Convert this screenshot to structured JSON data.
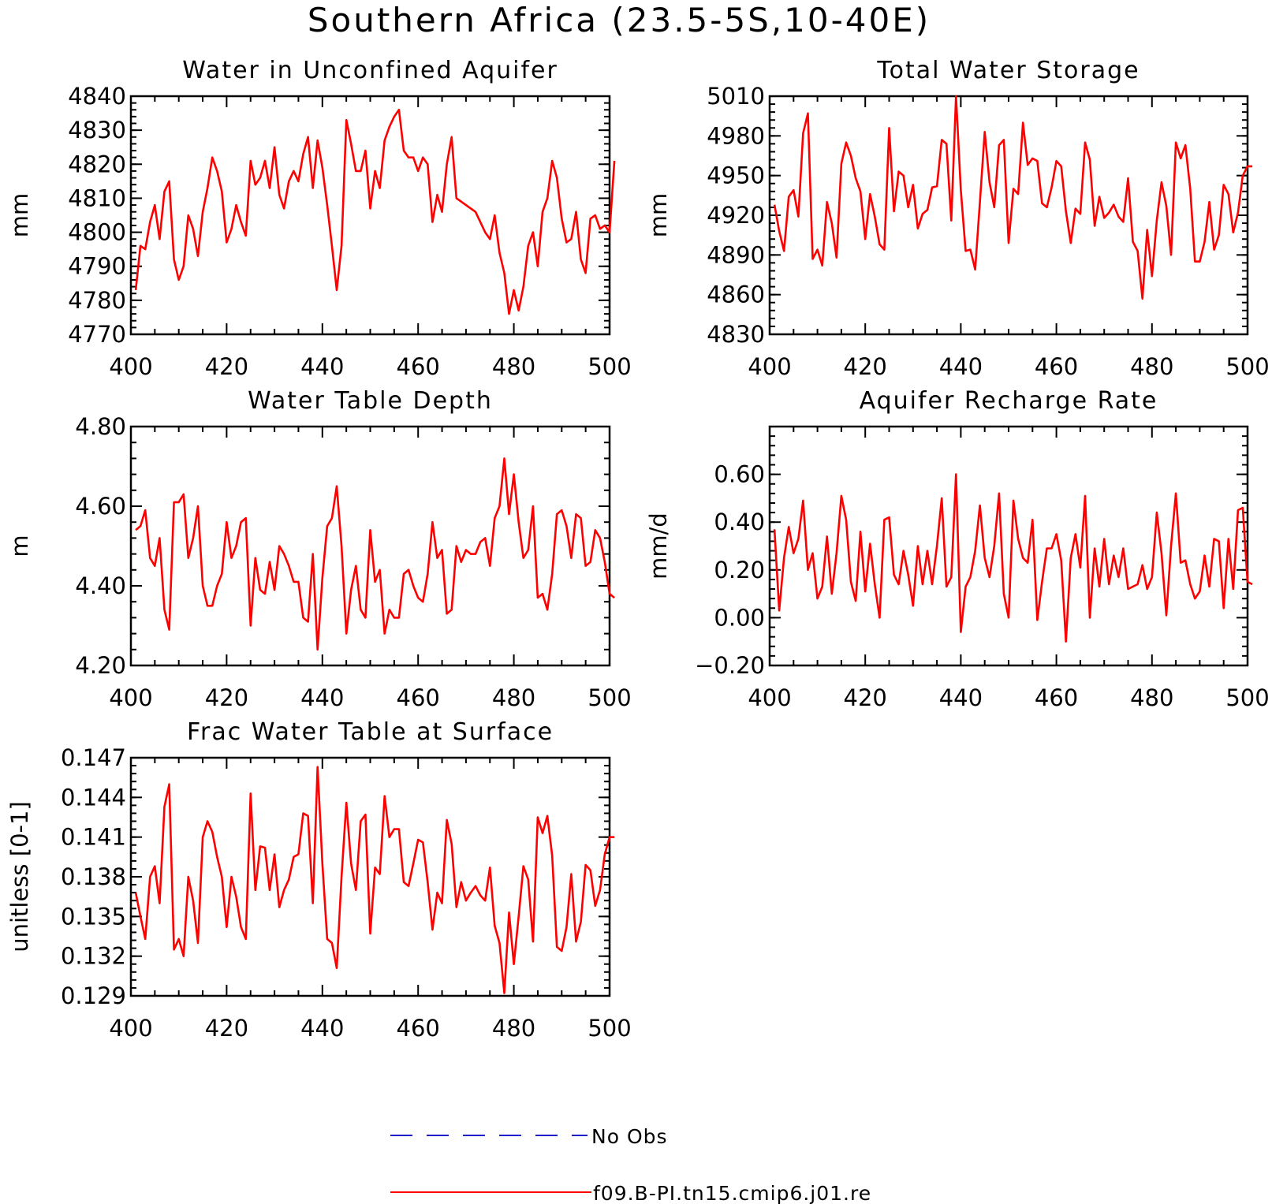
{
  "figure_title": "Southern Africa (23.5-5S,10-40E)",
  "legend": [
    {
      "label": "No Obs",
      "color": "#1f1fcc",
      "style": "dashed"
    },
    {
      "label": "f09.B-PI.tn15.cmip6.j01.re",
      "color": "#ff0000",
      "style": "solid"
    }
  ],
  "chart_data": [
    {
      "type": "line",
      "title": "Water in Unconfined Aquifer",
      "ylabel": "mm",
      "xlim": [
        400,
        500
      ],
      "ylim": [
        4770,
        4840
      ],
      "xticks": [
        400,
        420,
        440,
        460,
        480,
        500
      ],
      "yticks": [
        4770,
        4780,
        4790,
        4800,
        4810,
        4820,
        4830,
        4840
      ],
      "ytick_labels": [
        "4770",
        "4780",
        "4790",
        "4800",
        "4810",
        "4820",
        "4830",
        "4840"
      ],
      "x_start": 401,
      "series": [
        {
          "color": "#ff0000",
          "values": [
            4783,
            4796,
            4795,
            4803,
            4808,
            4798,
            4812,
            4815,
            4792,
            4786,
            4790,
            4805,
            4801,
            4793,
            4806,
            4813,
            4822,
            4818,
            4812,
            4797,
            4801,
            4808,
            4803,
            4799,
            4821,
            4814,
            4816,
            4821,
            4813,
            4825,
            4811,
            4807,
            4815,
            4818,
            4815,
            4823,
            4828,
            4813,
            4827,
            4819,
            4808,
            4796,
            4783,
            4796,
            4833,
            4826,
            4818,
            4818,
            4824,
            4807,
            4818,
            4813,
            4827,
            4831,
            4834,
            4836,
            4824,
            4822,
            4822,
            4818,
            4822,
            4820,
            4803,
            4811,
            4806,
            4820,
            4828,
            4810,
            4809,
            4808,
            4807,
            4806,
            4803,
            4800,
            4798,
            4805,
            4794,
            4788,
            4776,
            4783,
            4777,
            4784,
            4796,
            4800,
            4790,
            4806,
            4810,
            4821,
            4816,
            4804,
            4797,
            4798,
            4806,
            4792,
            4788,
            4804,
            4805,
            4801,
            4802,
            4800,
            4821
          ]
        }
      ]
    },
    {
      "type": "line",
      "title": "Total Water Storage",
      "ylabel": "mm",
      "xlim": [
        400,
        500
      ],
      "ylim": [
        4830,
        5010
      ],
      "xticks": [
        400,
        420,
        440,
        460,
        480,
        500
      ],
      "yticks": [
        4830,
        4860,
        4890,
        4920,
        4950,
        4980,
        5010
      ],
      "ytick_labels": [
        "4830",
        "4860",
        "4890",
        "4920",
        "4950",
        "4980",
        "5010"
      ],
      "x_start": 401,
      "series": [
        {
          "color": "#ff0000",
          "values": [
            4928,
            4908,
            4893,
            4934,
            4939,
            4919,
            4982,
            4997,
            4887,
            4894,
            4882,
            4930,
            4914,
            4888,
            4959,
            4975,
            4965,
            4948,
            4938,
            4902,
            4936,
            4919,
            4898,
            4894,
            4986,
            4923,
            4953,
            4950,
            4926,
            4943,
            4910,
            4921,
            4924,
            4941,
            4942,
            4977,
            4974,
            4916,
            5010,
            4939,
            4893,
            4894,
            4879,
            4930,
            4983,
            4945,
            4926,
            4973,
            4977,
            4899,
            4940,
            4936,
            4990,
            4958,
            4963,
            4961,
            4929,
            4926,
            4941,
            4961,
            4957,
            4923,
            4899,
            4925,
            4921,
            4975,
            4962,
            4912,
            4934,
            4918,
            4922,
            4928,
            4919,
            4915,
            4948,
            4900,
            4893,
            4857,
            4909,
            4874,
            4916,
            4945,
            4927,
            4890,
            4975,
            4963,
            4973,
            4940,
            4885,
            4885,
            4900,
            4930,
            4894,
            4905,
            4943,
            4936,
            4907,
            4922,
            4950,
            4957,
            4957
          ]
        }
      ]
    },
    {
      "type": "line",
      "title": "Water Table Depth",
      "ylabel": "m",
      "xlim": [
        400,
        500
      ],
      "ylim": [
        4.2,
        4.8
      ],
      "xticks": [
        400,
        420,
        440,
        460,
        480,
        500
      ],
      "yticks": [
        4.2,
        4.4,
        4.6,
        4.8
      ],
      "ytick_labels": [
        "4.20",
        "4.40",
        "4.60",
        "4.80"
      ],
      "x_start": 401,
      "series": [
        {
          "color": "#ff0000",
          "values": [
            4.54,
            4.55,
            4.59,
            4.47,
            4.45,
            4.52,
            4.34,
            4.29,
            4.61,
            4.61,
            4.63,
            4.47,
            4.52,
            4.6,
            4.4,
            4.35,
            4.35,
            4.4,
            4.43,
            4.56,
            4.47,
            4.5,
            4.56,
            4.57,
            4.3,
            4.47,
            4.39,
            4.38,
            4.46,
            4.39,
            4.5,
            4.48,
            4.45,
            4.41,
            4.41,
            4.32,
            4.31,
            4.48,
            4.24,
            4.42,
            4.55,
            4.57,
            4.65,
            4.5,
            4.28,
            4.39,
            4.45,
            4.34,
            4.32,
            4.54,
            4.41,
            4.44,
            4.28,
            4.34,
            4.32,
            4.32,
            4.43,
            4.44,
            4.4,
            4.37,
            4.36,
            4.43,
            4.56,
            4.47,
            4.49,
            4.33,
            4.34,
            4.5,
            4.46,
            4.49,
            4.48,
            4.48,
            4.51,
            4.52,
            4.45,
            4.57,
            4.6,
            4.72,
            4.58,
            4.68,
            4.56,
            4.47,
            4.49,
            4.6,
            4.37,
            4.38,
            4.34,
            4.43,
            4.58,
            4.59,
            4.55,
            4.47,
            4.58,
            4.57,
            4.45,
            4.46,
            4.54,
            4.52,
            4.46,
            4.38,
            4.37
          ]
        }
      ]
    },
    {
      "type": "line",
      "title": "Aquifer Recharge Rate",
      "ylabel": "mm/d",
      "xlim": [
        400,
        500
      ],
      "ylim": [
        -0.2,
        0.8
      ],
      "xticks": [
        400,
        420,
        440,
        460,
        480,
        500
      ],
      "yticks": [
        -0.2,
        0.0,
        0.2,
        0.4,
        0.6
      ],
      "ytick_labels": [
        "−0.20",
        "0.00",
        "0.20",
        "0.40",
        "0.60"
      ],
      "x_start": 401,
      "series": [
        {
          "color": "#ff0000",
          "values": [
            0.37,
            0.03,
            0.25,
            0.38,
            0.27,
            0.33,
            0.49,
            0.2,
            0.27,
            0.08,
            0.13,
            0.34,
            0.1,
            0.27,
            0.51,
            0.41,
            0.15,
            0.07,
            0.36,
            0.11,
            0.31,
            0.14,
            0.0,
            0.41,
            0.42,
            0.18,
            0.14,
            0.28,
            0.18,
            0.05,
            0.3,
            0.14,
            0.28,
            0.14,
            0.3,
            0.5,
            0.13,
            0.17,
            0.6,
            -0.06,
            0.13,
            0.17,
            0.28,
            0.47,
            0.25,
            0.17,
            0.3,
            0.52,
            0.1,
            0.0,
            0.49,
            0.33,
            0.25,
            0.23,
            0.41,
            -0.01,
            0.15,
            0.29,
            0.29,
            0.35,
            0.24,
            -0.1,
            0.25,
            0.35,
            0.21,
            0.51,
            0.0,
            0.29,
            0.13,
            0.33,
            0.14,
            0.26,
            0.17,
            0.29,
            0.12,
            0.13,
            0.14,
            0.22,
            0.12,
            0.17,
            0.44,
            0.27,
            0.01,
            0.3,
            0.52,
            0.23,
            0.24,
            0.14,
            0.08,
            0.11,
            0.26,
            0.13,
            0.33,
            0.32,
            0.04,
            0.33,
            0.12,
            0.45,
            0.46,
            0.15,
            0.14
          ]
        }
      ]
    },
    {
      "type": "line",
      "title": "Frac Water Table at Surface",
      "ylabel": "unitless [0-1]",
      "xlim": [
        400,
        500
      ],
      "ylim": [
        0.129,
        0.147
      ],
      "xticks": [
        400,
        420,
        440,
        460,
        480,
        500
      ],
      "yticks": [
        0.129,
        0.132,
        0.135,
        0.138,
        0.141,
        0.144,
        0.147
      ],
      "ytick_labels": [
        "0.129",
        "0.132",
        "0.135",
        "0.138",
        "0.141",
        "0.144",
        "0.147"
      ],
      "x_start": 401,
      "series": [
        {
          "color": "#ff0000",
          "values": [
            0.1368,
            0.135,
            0.1333,
            0.138,
            0.1388,
            0.136,
            0.1433,
            0.145,
            0.1325,
            0.1333,
            0.132,
            0.138,
            0.1362,
            0.133,
            0.141,
            0.1422,
            0.1414,
            0.1395,
            0.138,
            0.1342,
            0.138,
            0.1365,
            0.1342,
            0.1333,
            0.1443,
            0.137,
            0.1403,
            0.1402,
            0.137,
            0.1397,
            0.1357,
            0.137,
            0.1378,
            0.1395,
            0.1397,
            0.1428,
            0.1426,
            0.136,
            0.1463,
            0.139,
            0.1333,
            0.133,
            0.1311,
            0.138,
            0.1436,
            0.139,
            0.137,
            0.1422,
            0.1427,
            0.1337,
            0.1387,
            0.1382,
            0.1441,
            0.141,
            0.1416,
            0.1416,
            0.1376,
            0.1373,
            0.139,
            0.1408,
            0.1406,
            0.1376,
            0.134,
            0.1368,
            0.136,
            0.1423,
            0.1405,
            0.1357,
            0.1376,
            0.1362,
            0.1368,
            0.1373,
            0.1366,
            0.1362,
            0.1387,
            0.1343,
            0.133,
            0.1292,
            0.1353,
            0.1314,
            0.135,
            0.1388,
            0.1378,
            0.1331,
            0.1425,
            0.1413,
            0.1426,
            0.1396,
            0.1327,
            0.1324,
            0.1342,
            0.1382,
            0.1331,
            0.1346,
            0.1389,
            0.1385,
            0.1358,
            0.137,
            0.1397,
            0.141,
            0.141
          ]
        }
      ]
    }
  ]
}
